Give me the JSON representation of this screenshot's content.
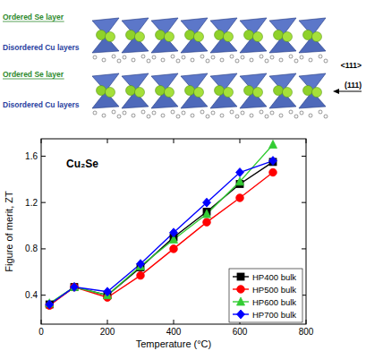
{
  "chart_data": {
    "type": "line",
    "title": "Cu₂Se",
    "x_label": "Temperature (°C)",
    "y_label": "Figure of merit, ZT",
    "x": [
      25,
      100,
      200,
      300,
      400,
      500,
      600,
      700
    ],
    "series": [
      {
        "name": "HP400 bulk",
        "color": "#000000",
        "marker": "square",
        "values": [
          0.32,
          0.47,
          0.4,
          0.64,
          0.9,
          1.12,
          1.36,
          1.55
        ]
      },
      {
        "name": "HP500 bulk",
        "color": "#ff0000",
        "marker": "circle",
        "values": [
          0.31,
          0.47,
          0.38,
          0.57,
          0.8,
          1.03,
          1.24,
          1.46
        ]
      },
      {
        "name": "HP600 bulk",
        "color": "#33cc33",
        "marker": "triangle",
        "values": [
          0.33,
          0.47,
          0.4,
          0.65,
          0.88,
          1.1,
          1.38,
          1.7
        ]
      },
      {
        "name": "HP700 bulk",
        "color": "#0000ff",
        "marker": "diamond",
        "values": [
          0.32,
          0.47,
          0.43,
          0.67,
          0.94,
          1.2,
          1.46,
          1.56
        ]
      }
    ],
    "xlim": [
      0,
      800
    ],
    "xticks": [
      0,
      200,
      400,
      600,
      800
    ],
    "ylim": [
      0.15,
      1.75
    ],
    "yticks": [
      0.4,
      0.8,
      1.2,
      1.6
    ],
    "legend": "lower right",
    "grid": false
  },
  "structure": {
    "layer_labels": [
      "Ordered Se layer",
      "Disordered Cu layers",
      "Ordered Se layer",
      "Disordered Cu layers"
    ],
    "direction_labels": [
      "<111>",
      "(111)"
    ]
  }
}
